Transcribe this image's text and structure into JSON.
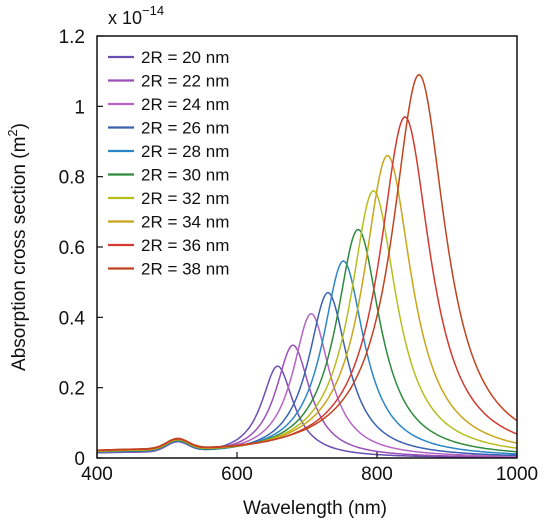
{
  "chart_data": {
    "type": "line",
    "xlabel": "Wavelength (nm)",
    "ylabel_main": "Absorption cross section (m",
    "ylabel_sup": "2",
    "ylabel_close": ")",
    "multiplier_base": "x 10",
    "multiplier_exp": "−14",
    "xlim": [
      400,
      1000
    ],
    "ylim": [
      0,
      1.2
    ],
    "xticks": [
      {
        "value": 400,
        "label": "400"
      },
      {
        "value": 600,
        "label": "600"
      },
      {
        "value": 800,
        "label": "800"
      },
      {
        "value": 1000,
        "label": "1000"
      }
    ],
    "yticks": [
      {
        "value": 0,
        "label": "0"
      },
      {
        "value": 0.2,
        "label": "0.2"
      },
      {
        "value": 0.4,
        "label": "0.4"
      },
      {
        "value": 0.6,
        "label": "0.6"
      },
      {
        "value": 0.8,
        "label": "0.8"
      },
      {
        "value": 1.0,
        "label": "1"
      },
      {
        "value": 1.2,
        "label": "1.2"
      }
    ],
    "legend_position": "top-left",
    "grid": false,
    "series": [
      {
        "name": "2R = 20 nm",
        "color": "#6a4fb3",
        "peak_x": 658,
        "peak_y": 0.26,
        "width": 28
      },
      {
        "name": "2R = 22 nm",
        "color": "#9b4fb8",
        "peak_x": 680,
        "peak_y": 0.32,
        "width": 30
      },
      {
        "name": "2R = 24 nm",
        "color": "#b565c4",
        "peak_x": 706,
        "peak_y": 0.41,
        "width": 32
      },
      {
        "name": "2R = 26 nm",
        "color": "#3a62b0",
        "peak_x": 730,
        "peak_y": 0.47,
        "width": 34
      },
      {
        "name": "2R = 28 nm",
        "color": "#2a86c8",
        "peak_x": 752,
        "peak_y": 0.56,
        "width": 36
      },
      {
        "name": "2R = 30 nm",
        "color": "#2f8a3e",
        "peak_x": 773,
        "peak_y": 0.65,
        "width": 38
      },
      {
        "name": "2R = 32 nm",
        "color": "#b6be1e",
        "peak_x": 795,
        "peak_y": 0.76,
        "width": 40
      },
      {
        "name": "2R = 34 nm",
        "color": "#c9a51a",
        "peak_x": 815,
        "peak_y": 0.86,
        "width": 42
      },
      {
        "name": "2R = 36 nm",
        "color": "#d23a32",
        "peak_x": 840,
        "peak_y": 0.97,
        "width": 44
      },
      {
        "name": "2R = 38 nm",
        "color": "#c0441f",
        "peak_x": 860,
        "peak_y": 1.09,
        "width": 46
      }
    ]
  }
}
